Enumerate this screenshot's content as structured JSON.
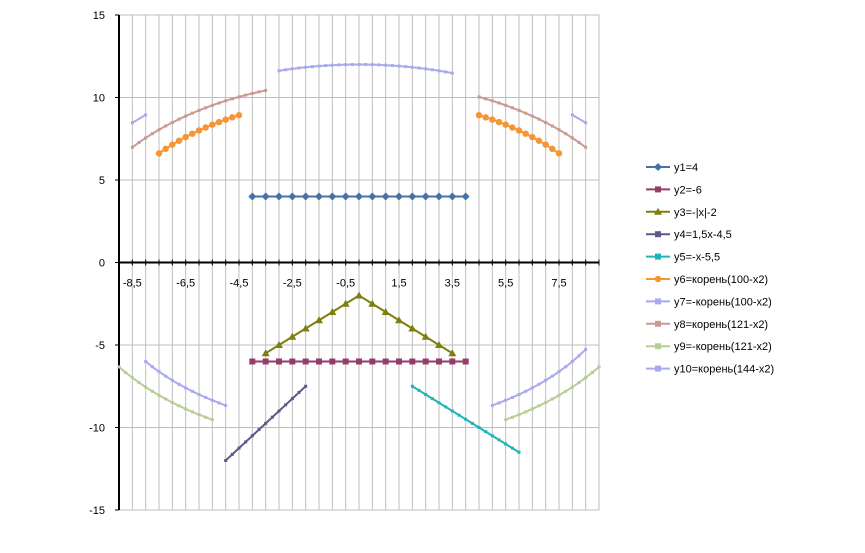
{
  "chart_data": {
    "type": "line",
    "title": "",
    "xlabel": "",
    "ylabel": "",
    "xlim": [
      -9,
      9
    ],
    "ylim": [
      -15,
      15
    ],
    "grid": true,
    "legend_position": "right",
    "x_tick_labels": [
      "-8,5",
      "-6,5",
      "-4,5",
      "-2,5",
      "-0,5",
      "1,5",
      "3,5",
      "5,5",
      "7,5"
    ],
    "x_tick_values": [
      -8.5,
      -6.5,
      -4.5,
      -2.5,
      -0.5,
      1.5,
      3.5,
      5.5,
      7.5
    ],
    "y_tick_labels": [
      "-15",
      "-10",
      "-5",
      "0",
      "5",
      "10",
      "15"
    ],
    "y_tick_values": [
      -15,
      -10,
      -5,
      0,
      5,
      10,
      15
    ],
    "series": [
      {
        "name": "y1=4",
        "color": "#4572A7",
        "marker": "diamond",
        "segments": [
          {
            "fn": "const4",
            "from": -4,
            "to": 4,
            "step": 0.5
          }
        ]
      },
      {
        "name": "y2=-6",
        "color": "#943C6A",
        "marker": "square",
        "segments": [
          {
            "fn": "const-6",
            "from": -4,
            "to": 4,
            "step": 0.5
          }
        ]
      },
      {
        "name": "y3=-|x|-2",
        "color": "#7F7F0F",
        "marker": "triangle",
        "segments": [
          {
            "fn": "negabs",
            "from": -3.5,
            "to": 3.5,
            "step": 0.5
          }
        ]
      },
      {
        "name": "y4=1,5x-4,5",
        "color": "#5E5889",
        "marker": "small",
        "segments": [
          {
            "fn": "lin4",
            "from": -5,
            "to": -2,
            "step": 0.25
          }
        ]
      },
      {
        "name": "y5=-x-5,5",
        "color": "#1FB5B5",
        "marker": "small",
        "segments": [
          {
            "fn": "lin5",
            "from": 2,
            "to": 6,
            "step": 0.25
          }
        ]
      },
      {
        "name": "y6=корень(100-x2)",
        "color": "#F79433",
        "marker": "circle",
        "segments": [
          {
            "fn": "sqrt100",
            "from": -7.5,
            "to": -4.5,
            "step": 0.25
          },
          {
            "fn": "sqrt100",
            "from": 4.5,
            "to": 7.5,
            "step": 0.25
          }
        ]
      },
      {
        "name": "y7=-корень(100-x2)",
        "color": "#A9A9F0",
        "marker": "small",
        "segments": [
          {
            "fn": "negsqrt100",
            "from": -8,
            "to": -5,
            "step": 0.25
          },
          {
            "fn": "negsqrt100",
            "from": 5,
            "to": 8.5,
            "step": 0.25
          }
        ]
      },
      {
        "name": "y8=корень(121-x2)",
        "color": "#C99A92",
        "marker": "small",
        "segments": [
          {
            "fn": "sqrt121",
            "from": -8.5,
            "to": -3.5,
            "step": 0.25
          },
          {
            "fn": "sqrt121",
            "from": 4.5,
            "to": 8.5,
            "step": 0.25
          }
        ]
      },
      {
        "name": "y9=-корень(121-x2)",
        "color": "#B5CE93",
        "marker": "small",
        "segments": [
          {
            "fn": "negsqrt121",
            "from": -9,
            "to": -5.5,
            "step": 0.25
          },
          {
            "fn": "negsqrt121",
            "from": 5.5,
            "to": 9,
            "step": 0.25
          }
        ]
      },
      {
        "name": "y10=корень(144-x2)",
        "color": "#A9A9F0",
        "marker": "small",
        "segments": [
          {
            "fn": "sqrt144",
            "from": -3,
            "to": 3.5,
            "step": 0.25
          },
          {
            "fn": "sqrt144",
            "from": -8.5,
            "to": -8,
            "step": 0.5
          },
          {
            "fn": "sqrt144",
            "from": 8,
            "to": 8.5,
            "step": 0.5
          }
        ]
      }
    ]
  }
}
